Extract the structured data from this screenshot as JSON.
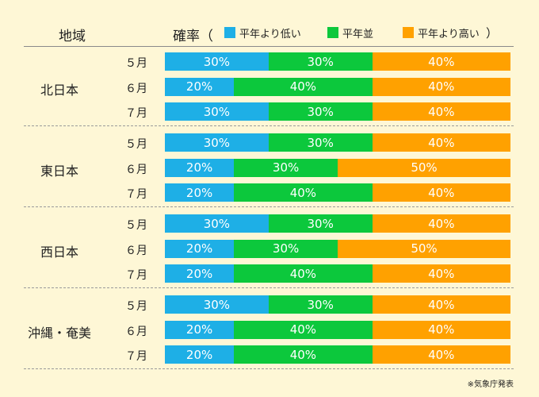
{
  "header": {
    "region_label": "地域",
    "prob_label": "確率（"
  },
  "legend": {
    "items": [
      {
        "label": "平年より低い",
        "color": "#1EAFE6"
      },
      {
        "label": "平年並",
        "color": "#0CC83C"
      },
      {
        "label": "平年より高い",
        "color": "#FFA100"
      }
    ],
    "close": "）"
  },
  "chart_data": {
    "type": "bar",
    "stacked": true,
    "orientation": "horizontal",
    "unit": "%",
    "series_names": [
      "平年より低い",
      "平年並",
      "平年より高い"
    ],
    "colors": [
      "#1EAFE6",
      "#0CC83C",
      "#FFA100"
    ],
    "regions": [
      {
        "name": "北日本",
        "rows": [
          {
            "month": "５月",
            "values": [
              30,
              30,
              40
            ]
          },
          {
            "month": "６月",
            "values": [
              20,
              40,
              40
            ]
          },
          {
            "month": "７月",
            "values": [
              30,
              30,
              40
            ]
          }
        ]
      },
      {
        "name": "東日本",
        "rows": [
          {
            "month": "５月",
            "values": [
              30,
              30,
              40
            ]
          },
          {
            "month": "６月",
            "values": [
              20,
              30,
              50
            ]
          },
          {
            "month": "７月",
            "values": [
              20,
              40,
              40
            ]
          }
        ]
      },
      {
        "name": "西日本",
        "rows": [
          {
            "month": "５月",
            "values": [
              30,
              30,
              40
            ]
          },
          {
            "month": "６月",
            "values": [
              20,
              30,
              50
            ]
          },
          {
            "month": "７月",
            "values": [
              20,
              40,
              40
            ]
          }
        ]
      },
      {
        "name": "沖縄・奄美",
        "rows": [
          {
            "month": "５月",
            "values": [
              30,
              30,
              40
            ]
          },
          {
            "month": "６月",
            "values": [
              20,
              40,
              40
            ]
          },
          {
            "month": "７月",
            "values": [
              20,
              40,
              40
            ]
          }
        ]
      }
    ]
  },
  "source": "※気象庁発表"
}
